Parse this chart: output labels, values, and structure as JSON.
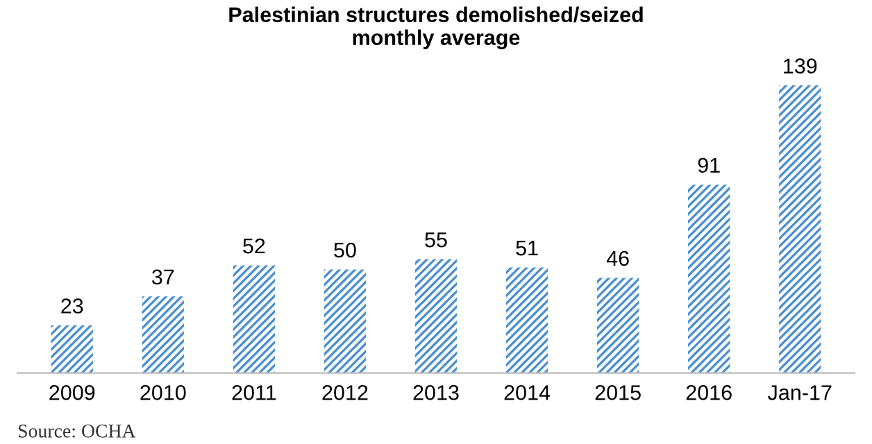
{
  "chart_data": {
    "type": "bar",
    "title": "Palestinian structures demolished/seized\nmonthly average",
    "categories": [
      "2009",
      "2010",
      "2011",
      "2012",
      "2013",
      "2014",
      "2015",
      "2016",
      "Jan-17"
    ],
    "values": [
      23,
      37,
      52,
      50,
      55,
      51,
      46,
      91,
      139
    ],
    "color": "#4a8fd0",
    "data_labels": true,
    "grid": false,
    "legend": false,
    "annotations": [
      "Source: OCHA"
    ]
  }
}
